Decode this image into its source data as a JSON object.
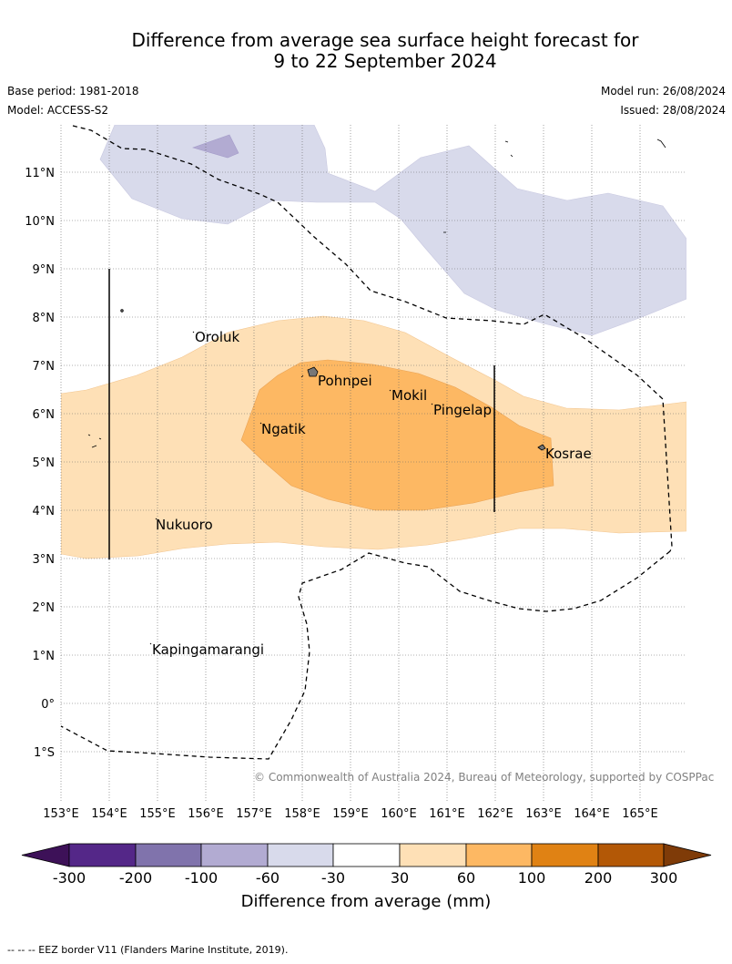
{
  "title": {
    "line1": "Difference from average sea surface height forecast for",
    "line2": "9 to 22 September 2024"
  },
  "meta": {
    "base_period": "Base period: 1981-2018",
    "model": "Model: ACCESS-S2",
    "model_run": "Model run: 26/08/2024",
    "issued": "Issued: 28/08/2024"
  },
  "map": {
    "lon_ticks": [
      "153°E",
      "154°E",
      "155°E",
      "156°E",
      "157°E",
      "158°E",
      "159°E",
      "160°E",
      "161°E",
      "162°E",
      "163°E",
      "164°E",
      "165°E"
    ],
    "lat_ticks": [
      "11°N",
      "10°N",
      "9°N",
      "8°N",
      "7°N",
      "6°N",
      "5°N",
      "4°N",
      "3°N",
      "2°N",
      "1°N",
      "0°",
      "1°S"
    ],
    "places": [
      "Oroluk",
      "Pohnpei",
      "Mokil",
      "Pingelap",
      "Ngatik",
      "Kosrae",
      "Nukuoro",
      "Kapingamarangi"
    ],
    "credit": "© Commonwealth of Australia 2024, Bureau of Meteorology, supported by COSPPac"
  },
  "colorbar": {
    "tick_labels": [
      "-300",
      "-200",
      "-100",
      "-60",
      "-30",
      "30",
      "60",
      "100",
      "200",
      "300"
    ],
    "colors": [
      "#3d1158",
      "#542788",
      "#8073ac",
      "#b2abd2",
      "#d8daeb",
      "#ffffff",
      "#fee0b6",
      "#fdb863",
      "#e08214",
      "#b35806",
      "#7f3b08"
    ],
    "label": "Difference from average (mm)"
  },
  "footer": "-- -- -- EEZ border V11 (Flanders Marine Institute, 2019)."
}
